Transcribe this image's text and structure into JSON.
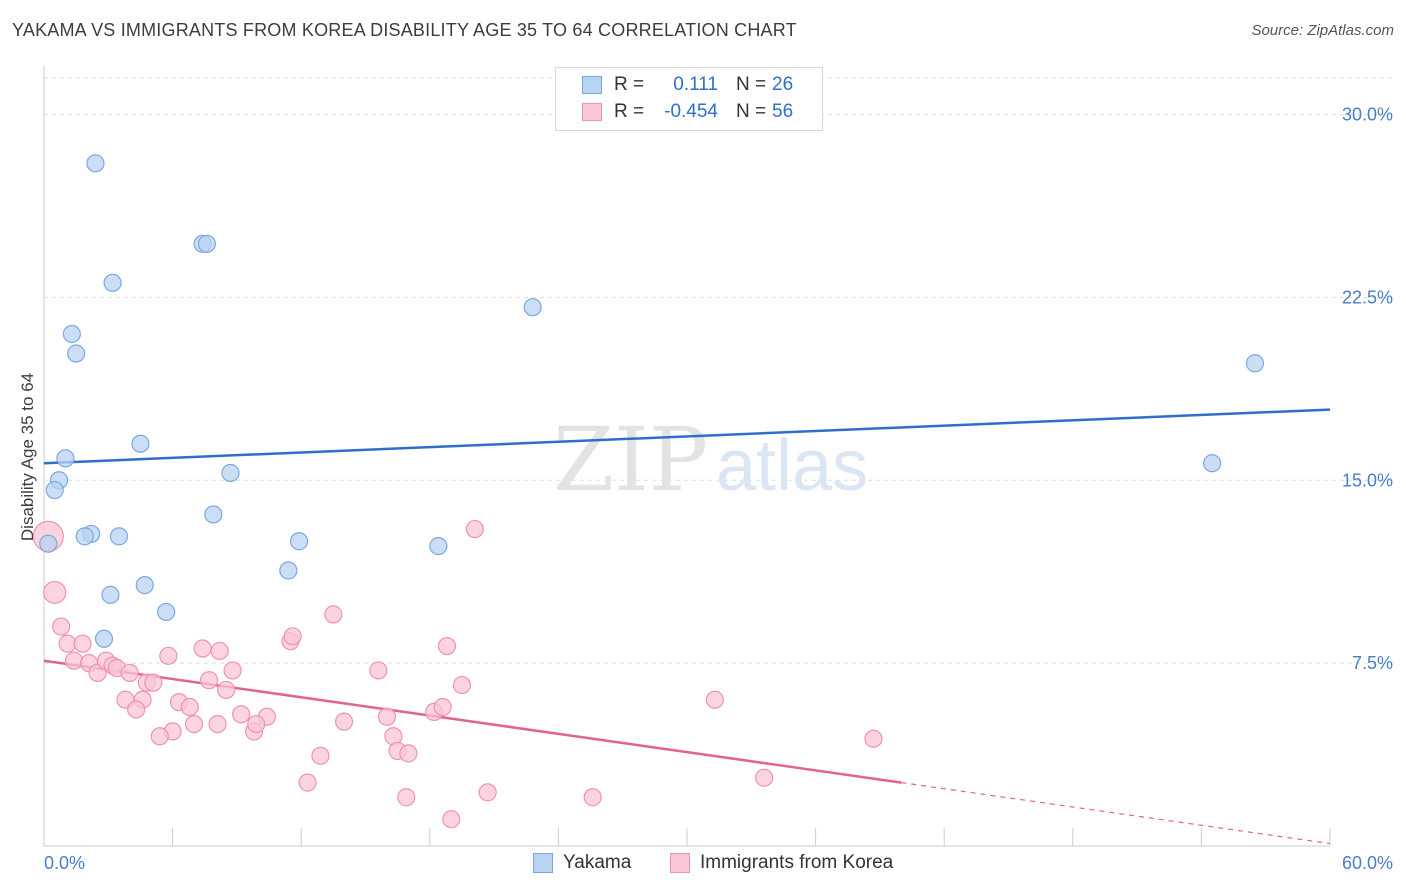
{
  "title": "YAKAMA VS IMMIGRANTS FROM KOREA DISABILITY AGE 35 TO 64 CORRELATION CHART",
  "source": "Source: ZipAtlas.com",
  "legend_stats": [
    {
      "r_label": "R =",
      "r_value": "0.111",
      "n_label": "N =",
      "n_value": "26"
    },
    {
      "r_label": "R =",
      "r_value": "-0.454",
      "n_label": "N =",
      "n_value": "56"
    }
  ],
  "colors": {
    "yakama_fill": "#b9d3f3",
    "yakama_stroke": "#7aa8e0",
    "yakama_line": "#2f6fca",
    "korea_fill": "#f9c6d5",
    "korea_stroke": "#ee93b0",
    "korea_line": "#e4628f",
    "grid": "#dddddd",
    "axis_text": "#4a7cc9"
  },
  "chart_data": {
    "type": "scatter",
    "title": "YAKAMA VS IMMIGRANTS FROM KOREA DISABILITY AGE 35 TO 64 CORRELATION CHART",
    "xlabel": "",
    "ylabel": "Disability Age 35 to 64",
    "xlim": [
      0,
      60
    ],
    "ylim": [
      0,
      31.5
    ],
    "x_tick_labels": [
      "0.0%",
      "60.0%"
    ],
    "y_ticks": [
      7.5,
      15.0,
      22.5,
      30.0
    ],
    "y_tick_labels": [
      "7.5%",
      "15.0%",
      "22.5%",
      "30.0%"
    ],
    "grid": "horizontal dashed",
    "legend_position": "bottom-center",
    "watermark": "ZIPatlas",
    "series": [
      {
        "name": "Yakama",
        "points": [
          [
            2.4,
            28.0
          ],
          [
            7.4,
            24.7
          ],
          [
            7.6,
            24.7
          ],
          [
            3.2,
            23.1
          ],
          [
            22.8,
            22.1
          ],
          [
            1.3,
            21.0
          ],
          [
            1.5,
            20.2
          ],
          [
            56.5,
            19.8
          ],
          [
            4.5,
            16.5
          ],
          [
            1.0,
            15.9
          ],
          [
            0.7,
            15.0
          ],
          [
            8.7,
            15.3
          ],
          [
            0.5,
            14.6
          ],
          [
            54.5,
            15.7
          ],
          [
            7.9,
            13.6
          ],
          [
            2.2,
            12.8
          ],
          [
            3.5,
            12.7
          ],
          [
            1.9,
            12.7
          ],
          [
            11.9,
            12.5
          ],
          [
            18.4,
            12.3
          ],
          [
            0.2,
            12.4
          ],
          [
            11.4,
            11.3
          ],
          [
            4.7,
            10.7
          ],
          [
            3.1,
            10.3
          ],
          [
            5.7,
            9.6
          ],
          [
            2.8,
            8.5
          ]
        ],
        "trend": {
          "x": [
            0,
            60
          ],
          "y": [
            15.7,
            17.9
          ]
        }
      },
      {
        "name": "Immigrants from Korea",
        "points": [
          [
            0.2,
            12.7
          ],
          [
            0.5,
            10.4
          ],
          [
            0.8,
            9.0
          ],
          [
            1.1,
            8.3
          ],
          [
            1.8,
            8.3
          ],
          [
            5.8,
            7.8
          ],
          [
            7.4,
            8.1
          ],
          [
            8.2,
            8.0
          ],
          [
            11.5,
            8.4
          ],
          [
            11.6,
            8.6
          ],
          [
            13.5,
            9.5
          ],
          [
            18.8,
            8.2
          ],
          [
            20.1,
            13.0
          ],
          [
            1.4,
            7.6
          ],
          [
            2.1,
            7.5
          ],
          [
            2.5,
            7.1
          ],
          [
            2.9,
            7.6
          ],
          [
            3.2,
            7.4
          ],
          [
            3.4,
            7.3
          ],
          [
            4.0,
            7.1
          ],
          [
            4.8,
            6.7
          ],
          [
            5.1,
            6.7
          ],
          [
            7.7,
            6.8
          ],
          [
            8.8,
            7.2
          ],
          [
            15.6,
            7.2
          ],
          [
            19.5,
            6.6
          ],
          [
            3.8,
            6.0
          ],
          [
            4.6,
            6.0
          ],
          [
            6.3,
            5.9
          ],
          [
            8.5,
            6.4
          ],
          [
            31.3,
            6.0
          ],
          [
            4.3,
            5.6
          ],
          [
            6.8,
            5.7
          ],
          [
            9.2,
            5.4
          ],
          [
            10.4,
            5.3
          ],
          [
            18.2,
            5.5
          ],
          [
            18.6,
            5.7
          ],
          [
            16.0,
            5.3
          ],
          [
            14.0,
            5.1
          ],
          [
            7.0,
            5.0
          ],
          [
            8.1,
            5.0
          ],
          [
            9.8,
            4.7
          ],
          [
            9.9,
            5.0
          ],
          [
            6.0,
            4.7
          ],
          [
            5.4,
            4.5
          ],
          [
            16.3,
            4.5
          ],
          [
            38.7,
            4.4
          ],
          [
            12.9,
            3.7
          ],
          [
            16.5,
            3.9
          ],
          [
            17.0,
            3.8
          ],
          [
            33.6,
            2.8
          ],
          [
            12.3,
            2.6
          ],
          [
            20.7,
            2.2
          ],
          [
            16.9,
            2.0
          ],
          [
            25.6,
            2.0
          ],
          [
            19.0,
            1.1
          ]
        ],
        "trend": {
          "x": [
            0,
            40
          ],
          "y": [
            7.6,
            2.6
          ],
          "dashed_extension": {
            "x": [
              40,
              60
            ],
            "y": [
              2.6,
              0.1
            ]
          }
        }
      }
    ]
  }
}
